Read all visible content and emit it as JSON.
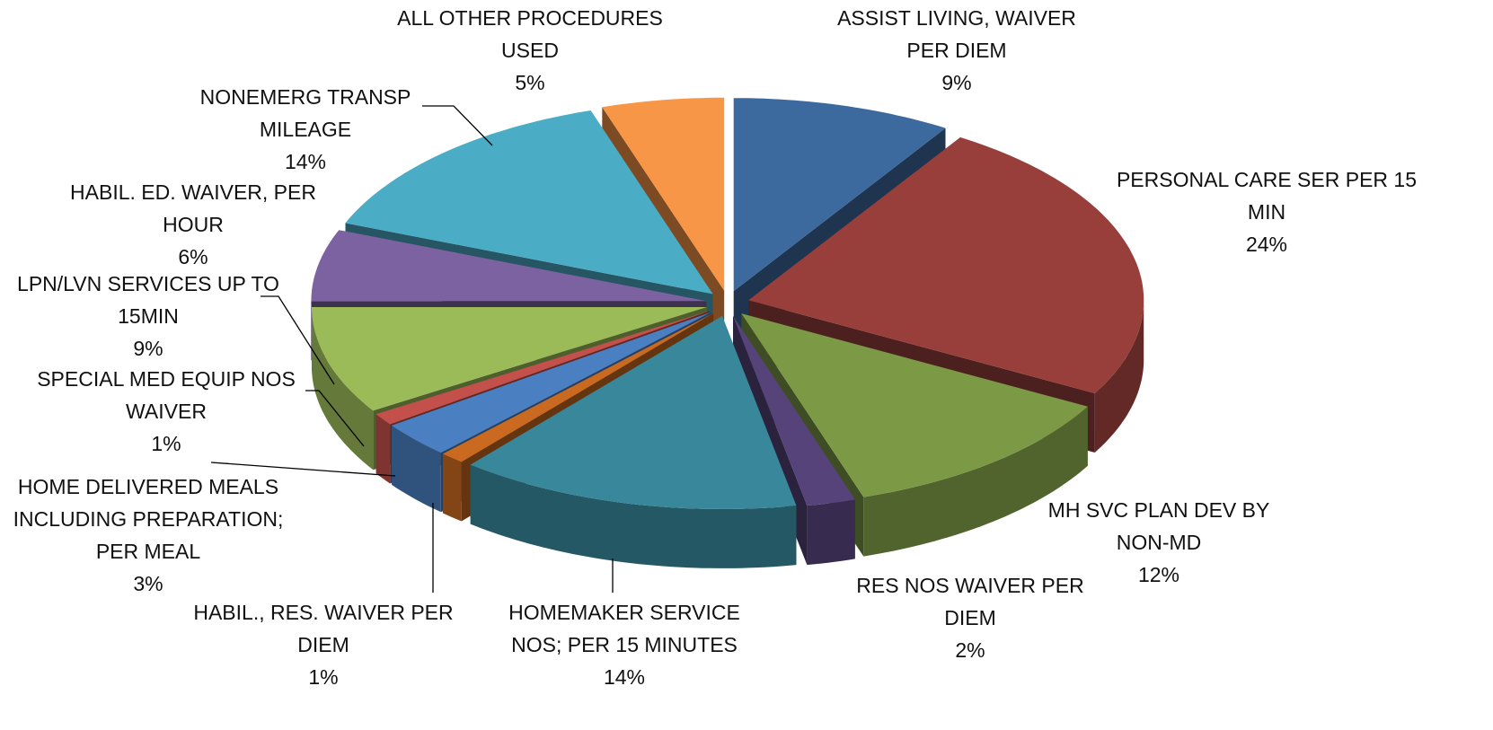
{
  "chart_data": {
    "type": "pie",
    "categories": [
      "ASSIST LIVING, WAIVER PER DIEM",
      "PERSONAL CARE SER PER 15 MIN",
      "MH SVC PLAN DEV BY NON-MD",
      "RES NOS WAIVER PER DIEM",
      "HOMEMAKER SERVICE NOS; PER 15 MINUTES",
      "HABIL., RES. WAIVER PER DIEM",
      "HOME DELIVERED MEALS  INCLUDING PREPARATION; PER MEAL",
      "SPECIAL MED EQUIP NOS WAIVER",
      "LPN/LVN SERVICES UP TO 15MIN",
      "HABIL. ED. WAIVER, PER HOUR",
      "NONEMERG TRANSP MILEAGE",
      "ALL OTHER PROCEDURES USED"
    ],
    "values": [
      9,
      24,
      12,
      2,
      14,
      1,
      3,
      1,
      9,
      6,
      14,
      5
    ],
    "value_labels": [
      "9%",
      "24%",
      "12%",
      "2%",
      "14%",
      "1%",
      "3%",
      "1%",
      "9%",
      "6%",
      "14%",
      "5%"
    ],
    "colors": [
      "#3d6a9e",
      "#983f3c",
      "#7c9a45",
      "#55437a",
      "#38879a",
      "#c96a20",
      "#4a7fc1",
      "#c4504c",
      "#9bbb59",
      "#7c62a0",
      "#4bacc6",
      "#f79646"
    ]
  }
}
